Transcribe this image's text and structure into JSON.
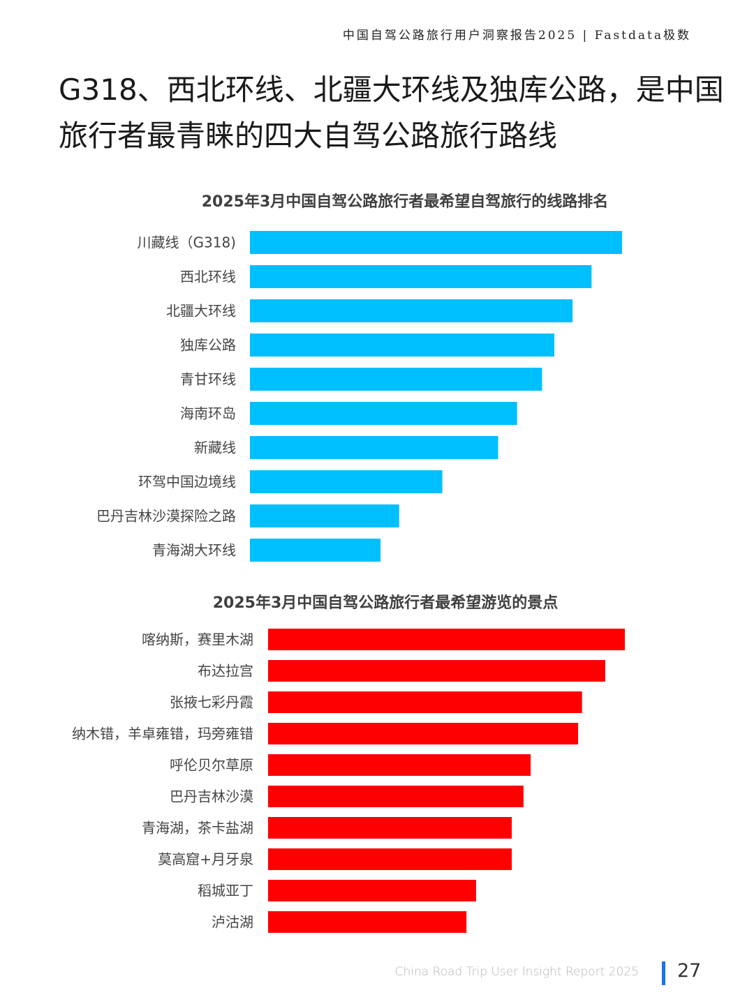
{
  "header": {
    "report_title": "中国自驾公路旅行用户洞察报告2025 | Fastdata极数"
  },
  "page_heading": {
    "line1": "G318、西北环线、北疆大环线及独库公路，是中国",
    "line2": "旅行者最青睐的四大自驾公路旅行路线"
  },
  "colors": {
    "chart1_bar": "#00BFFF",
    "chart2_bar": "#FF0000",
    "footer_accent": "#1A73E8"
  },
  "chart_data": [
    {
      "type": "bar",
      "orientation": "horizontal",
      "title": "2025年3月中国自驾公路旅行者最希望自驾旅行的线路排名",
      "categories": [
        "川藏线（G318)",
        "西北环线",
        "北疆大环线",
        "独库公路",
        "青甘环线",
        "海南环岛",
        "新藏线",
        "环驾中国边境线",
        "巴丹吉林沙漠探险之路",
        "青海湖大环线"
      ],
      "values": [
        100,
        91.8,
        86.7,
        81.8,
        78.5,
        71.8,
        66.7,
        51.7,
        40.1,
        35.1
      ],
      "xlim": [
        0,
        100
      ],
      "grid": false,
      "legend": "none"
    },
    {
      "type": "bar",
      "orientation": "horizontal",
      "title": "2025年3月中国自驾公路旅行者最希望游览的景点",
      "categories": [
        "喀纳斯，赛里木湖",
        "布达拉宫",
        "张掖七彩丹霞",
        "纳木错，羊卓雍错，玛旁雍错",
        "呼伦贝尔草原",
        "巴丹吉林沙漠",
        "青海湖，茶卡盐湖",
        "莫高窟+月牙泉",
        "稻城亚丁",
        "泸沽湖"
      ],
      "values": [
        100,
        94.5,
        88,
        86.9,
        73.6,
        71.6,
        68.3,
        68.3,
        58.3,
        55.6
      ],
      "xlim": [
        0,
        100
      ],
      "grid": false,
      "legend": "none"
    }
  ],
  "footer": {
    "report_name_en": "China Road Trip User Insight Report 2025",
    "page_number": "27"
  }
}
